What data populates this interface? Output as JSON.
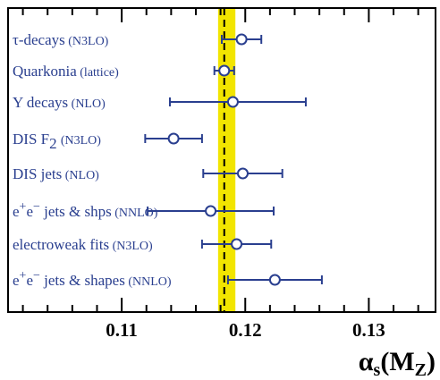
{
  "chart_data": {
    "type": "scatter",
    "title": "",
    "xlabel": "αs(MZ)",
    "xlabel_parts": {
      "symbol": "α",
      "sub1": "s",
      "paren_open": "(",
      "mid": "M",
      "sub2": "Z",
      "paren_close": ")"
    },
    "xlim": [
      0.1008,
      0.1354
    ],
    "xticks": [
      0.11,
      0.12,
      0.13
    ],
    "xtick_labels": [
      "0.11",
      "0.12",
      "0.13"
    ],
    "world_average": {
      "value": 0.1183,
      "band": [
        0.1178,
        0.1192
      ],
      "band_color": "#f2e500",
      "line_style": "dashed"
    },
    "series_color": "#2a3f8f",
    "points": [
      {
        "label": "τ-decays",
        "sub": "(N3LO)",
        "value": 0.1197,
        "err_lo": 0.0016,
        "err_hi": 0.0016
      },
      {
        "label": "Quarkonia",
        "sub": "(lattice)",
        "value": 0.1183,
        "err_lo": 0.0008,
        "err_hi": 0.0008
      },
      {
        "label": "Υ decays",
        "sub": "(NLO)",
        "value": 0.119,
        "err_lo": 0.0051,
        "err_hi": 0.0059
      },
      {
        "label": "DIS  F",
        "label_subscript": "2",
        "sub": "(N3LO)",
        "value": 0.1142,
        "err_lo": 0.0023,
        "err_hi": 0.0023
      },
      {
        "label": "DIS  jets",
        "sub": "(NLO)",
        "value": 0.1198,
        "err_lo": 0.0032,
        "err_hi": 0.0032
      },
      {
        "label": "e",
        "sup1": "+",
        "label_mid": "e",
        "sup2": "−",
        "label_rest": " jets & shps",
        "sub": "(NNLO)",
        "value": 0.1172,
        "err_lo": 0.0051,
        "err_hi": 0.0051
      },
      {
        "label": "electroweak fits",
        "sub": "(N3LO)",
        "value": 0.1193,
        "err_lo": 0.0028,
        "err_hi": 0.0028
      },
      {
        "label": "e",
        "sup1": "+",
        "label_mid": "e",
        "sup2": "−",
        "label_rest": " jets & shapes",
        "sub": "(NNLO)",
        "value": 0.1224,
        "err_lo": 0.0038,
        "err_hi": 0.0038
      }
    ]
  }
}
